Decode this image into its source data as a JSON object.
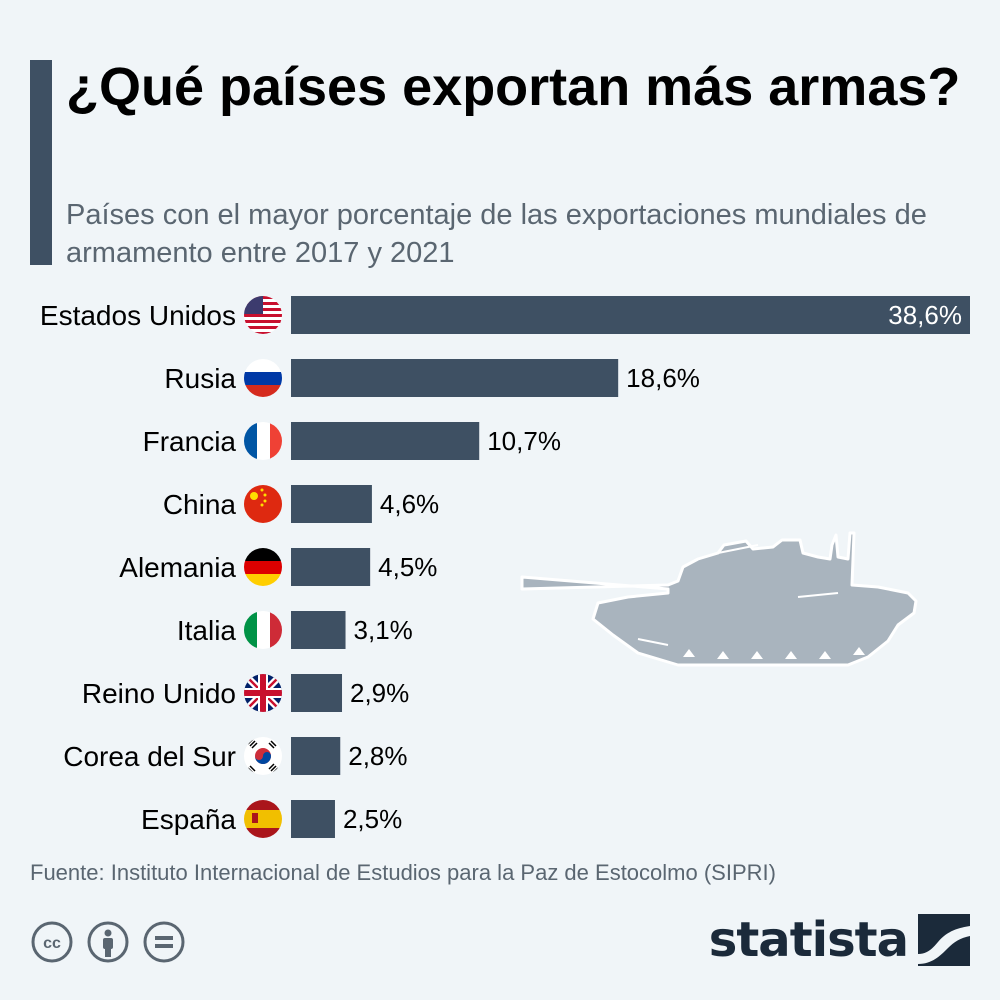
{
  "header": {
    "title": "¿Qué países exportan más armas?",
    "subtitle": "Países con el mayor porcentaje de las exportaciones mundiales de armamento entre 2017 y 2021"
  },
  "chart_data": {
    "type": "bar",
    "orientation": "horizontal",
    "categories": [
      "Estados Unidos",
      "Rusia",
      "Francia",
      "China",
      "Alemania",
      "Italia",
      "Reino Unido",
      "Corea del Sur",
      "España"
    ],
    "values": [
      38.6,
      18.6,
      10.7,
      4.6,
      4.5,
      3.1,
      2.9,
      2.8,
      2.5
    ],
    "value_labels": [
      "38,6%",
      "18,6%",
      "10,7%",
      "4,6%",
      "4,5%",
      "3,1%",
      "2,9%",
      "2,8%",
      "2,5%"
    ],
    "flags": [
      "us-flag-icon",
      "russia-flag-icon",
      "france-flag-icon",
      "china-flag-icon",
      "germany-flag-icon",
      "italy-flag-icon",
      "uk-flag-icon",
      "south-korea-flag-icon",
      "spain-flag-icon"
    ],
    "unit": "%",
    "bar_color": "#3e5063",
    "grid": false
  },
  "footer": {
    "source": "Fuente: Instituto Internacional de Estudios para la Paz de Estocolmo (SIPRI)",
    "brand": "statista",
    "license_icons": [
      "cc-icon",
      "attribution-icon",
      "no-derivatives-icon"
    ]
  },
  "colors": {
    "background": "#f0f5f8",
    "bar": "#3e5063",
    "accent": "#3e5063",
    "illustration": "#a9b4be",
    "subtle_text": "#5a6671"
  }
}
